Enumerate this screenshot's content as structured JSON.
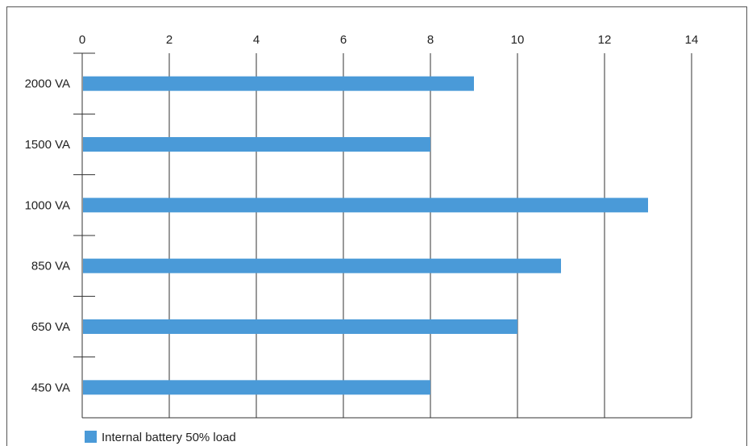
{
  "chart_data": {
    "type": "bar",
    "orientation": "horizontal",
    "categories": [
      "2000 VA",
      "1500 VA",
      "1000 VA",
      "850 VA",
      "650 VA",
      "450 VA"
    ],
    "series": [
      {
        "name": "Internal battery 50% load",
        "values": [
          9,
          8,
          13,
          11,
          10,
          8
        ]
      }
    ],
    "xlim": [
      0,
      14
    ],
    "xticks": [
      0,
      2,
      4,
      6,
      8,
      10,
      12,
      14
    ],
    "x_axis_position": "top",
    "grid": "vertical",
    "legend": "bottom-left",
    "colors": {
      "bar": "#4a9ad8",
      "axis": "#333333",
      "grid": "#333333"
    }
  }
}
